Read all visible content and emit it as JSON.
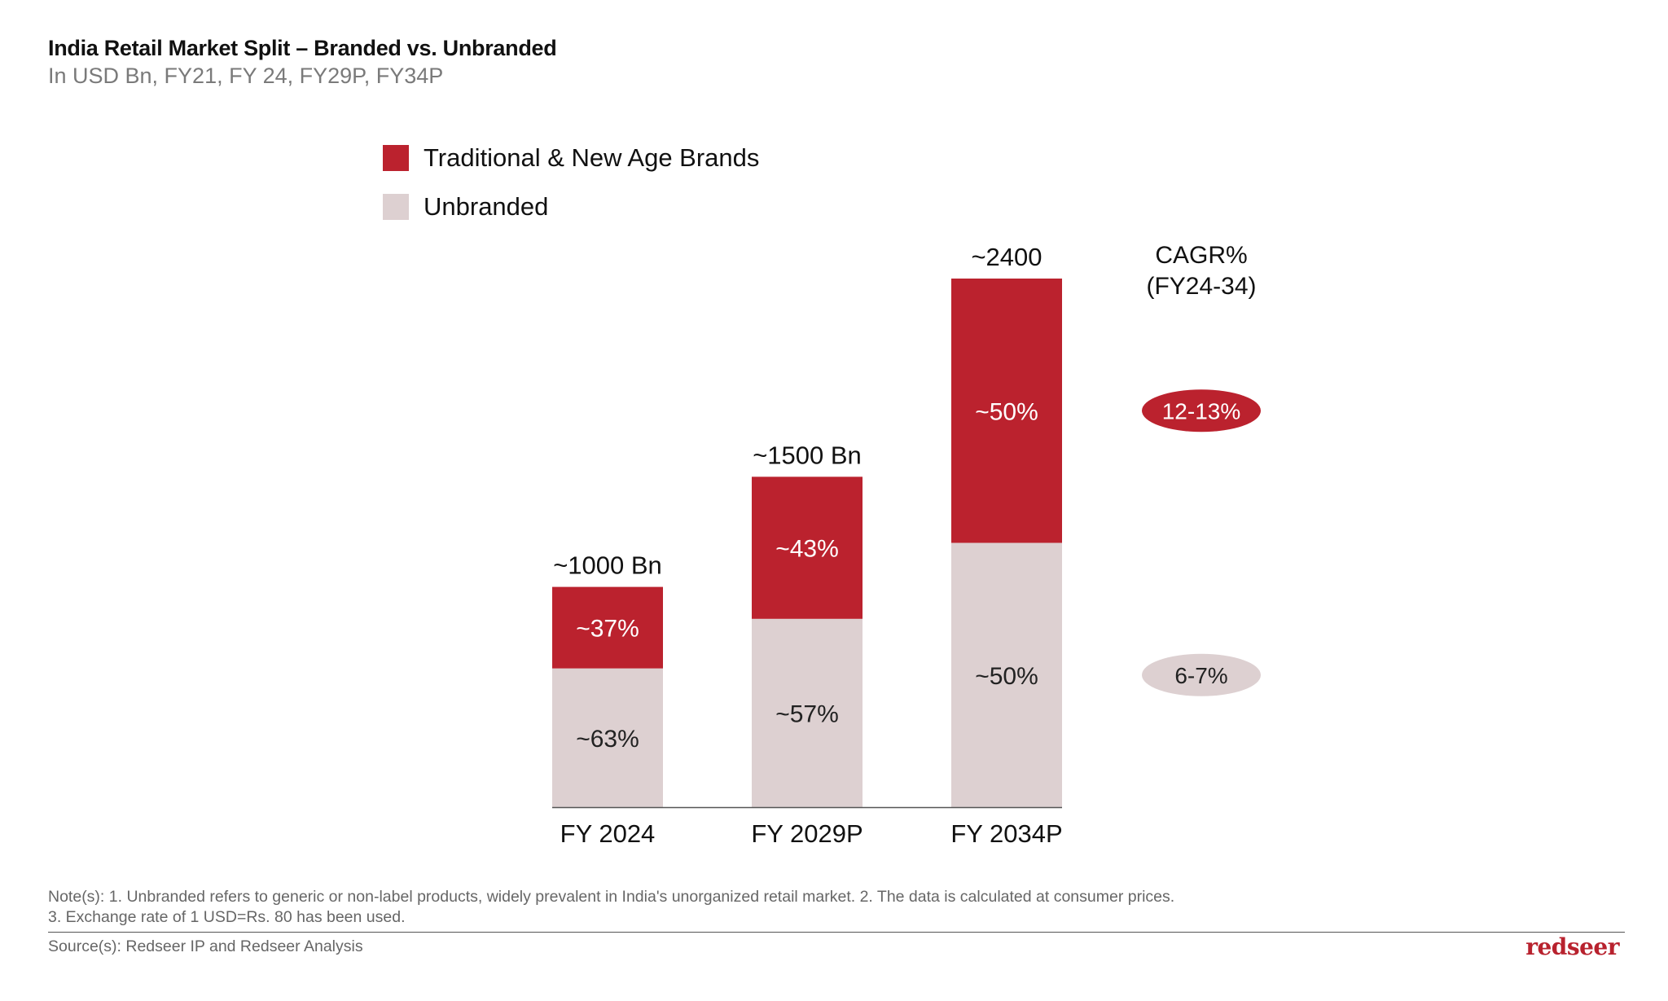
{
  "header": {
    "title": "India Retail Market Split – Branded vs. Unbranded",
    "subtitle": "In USD Bn, FY21, FY 24, FY29P, FY34P"
  },
  "colors": {
    "branded": "#bb222e",
    "unbranded": "#ddd0d1",
    "axis": "#555555"
  },
  "chart_data": {
    "type": "bar",
    "stacked": true,
    "categories": [
      "FY 2024",
      "FY 2029P",
      "FY 2034P"
    ],
    "totals": [
      1000,
      1500,
      2400
    ],
    "total_labels": [
      "~1000 Bn",
      "~1500 Bn",
      "~2400"
    ],
    "series": [
      {
        "name": "Unbranded",
        "share": [
          63,
          57,
          50
        ],
        "labels": [
          "~63%",
          "~57%",
          "~50%"
        ]
      },
      {
        "name": "Traditional & New Age Brands",
        "share": [
          37,
          43,
          50
        ],
        "labels": [
          "~37%",
          "~43%",
          "~50%"
        ]
      }
    ],
    "legend": {
      "placement": "top-left",
      "items": [
        "Traditional & New Age Brands",
        "Unbranded"
      ]
    },
    "cagr": {
      "header_line1": "CAGR%",
      "header_line2": "(FY24-34)",
      "branded": "12-13%",
      "unbranded": "6-7%"
    },
    "ylim": [
      0,
      2400
    ],
    "grid": false
  },
  "footer": {
    "notes_line1": "Note(s): 1. Unbranded refers to generic or non-label products, widely prevalent in India's unorganized retail market. 2. The data is calculated at consumer prices.",
    "notes_line2": "3. Exchange rate of 1 USD=Rs. 80 has been used.",
    "source": "Source(s): Redseer IP and Redseer Analysis",
    "logo_text": "redseer"
  }
}
